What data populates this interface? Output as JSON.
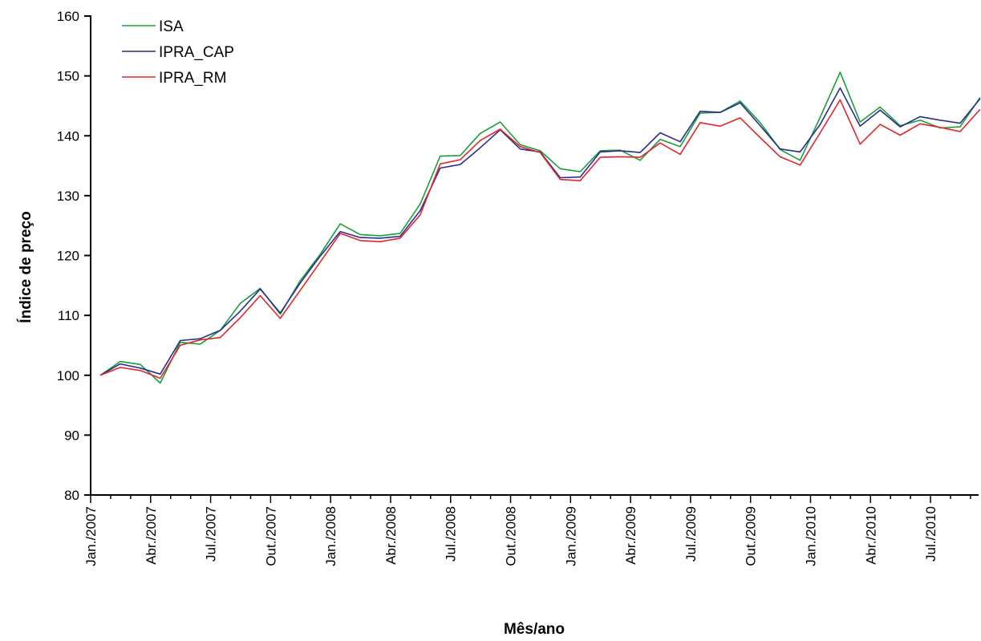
{
  "chart_data": {
    "type": "line",
    "xlabel": "Mês/ano",
    "ylabel": "Índice de preço",
    "ylim": [
      80,
      160
    ],
    "yticks": [
      80,
      90,
      100,
      110,
      120,
      130,
      140,
      150,
      160
    ],
    "x_tick_labels": [
      "Jan./2007",
      "Abr./2007",
      "Jul./2007",
      "Out./2007",
      "Jan./2008",
      "Abr./2008",
      "Jul./2008",
      "Out./2008",
      "Jan./2009",
      "Abr./2009",
      "Jul./2009",
      "Out./2009",
      "Jan./2010",
      "Abr./2010",
      "Jul./2010"
    ],
    "x": [
      "Jan./2007",
      "Fev./2007",
      "Mar./2007",
      "Abr./2007",
      "Mai./2007",
      "Jun./2007",
      "Jul./2007",
      "Ago./2007",
      "Set./2007",
      "Out./2007",
      "Nov./2007",
      "Dez./2007",
      "Jan./2008",
      "Fev./2008",
      "Mar./2008",
      "Abr./2008",
      "Mai./2008",
      "Jun./2008",
      "Jul./2008",
      "Ago./2008",
      "Set./2008",
      "Out./2008",
      "Nov./2008",
      "Dez./2008",
      "Jan./2009",
      "Fev./2009",
      "Mar./2009",
      "Abr./2009",
      "Mai./2009",
      "Jun./2009",
      "Jul./2009",
      "Ago./2009",
      "Set./2009",
      "Out./2009",
      "Nov./2009",
      "Dez./2009",
      "Jan./2010",
      "Fev./2010",
      "Mar./2010",
      "Abr./2010",
      "Mai./2010",
      "Jun./2010",
      "Jul./2010",
      "Ago./2010",
      "Set./2010"
    ],
    "grid": false,
    "legend_position": "top-left",
    "series": [
      {
        "name": "ISA",
        "color": "#1a9e3a",
        "values": [
          100,
          102.3,
          101.8,
          98.7,
          105.5,
          105.2,
          107.5,
          112,
          114.5,
          110.2,
          115.8,
          120.2,
          125.3,
          123.5,
          123.3,
          123.7,
          128.6,
          136.6,
          136.7,
          140.4,
          142.3,
          138.5,
          137.5,
          134.5,
          134,
          137.5,
          137.6,
          135.9,
          139.4,
          138.2,
          143.8,
          143.9,
          145.8,
          142.2,
          137.7,
          135.9,
          143.1,
          150.6,
          142.3,
          144.8,
          141.7,
          142.6,
          141.3,
          141.5,
          146.4
        ]
      },
      {
        "name": "IPRA_CAP",
        "color": "#2b2e8c",
        "values": [
          100,
          101.9,
          101.2,
          100.2,
          105.8,
          106.1,
          107.5,
          110.7,
          114.4,
          110.4,
          115.4,
          119.9,
          124,
          123,
          122.9,
          123.2,
          127.5,
          134.6,
          135.2,
          138,
          141,
          137.8,
          137.3,
          133,
          133.1,
          137.3,
          137.5,
          137.2,
          140.5,
          139,
          144.1,
          143.9,
          145.5,
          141.7,
          137.8,
          137.3,
          141.9,
          148,
          141.6,
          144.3,
          141.5,
          143.2,
          142.6,
          142.1,
          146.2
        ]
      },
      {
        "name": "IPRA_RM",
        "color": "#e3242b",
        "values": [
          100,
          101.3,
          100.8,
          99.5,
          105,
          105.9,
          106.3,
          109.6,
          113.3,
          109.5,
          114.2,
          118.9,
          123.7,
          122.5,
          122.3,
          122.9,
          126.8,
          135.3,
          136,
          139.2,
          141.1,
          138.2,
          137.2,
          132.7,
          132.5,
          136.4,
          136.5,
          136.4,
          138.8,
          136.9,
          142.2,
          141.6,
          143,
          139.7,
          136.5,
          135.1,
          140.5,
          146,
          138.6,
          141.9,
          140.1,
          142,
          141.4,
          140.7,
          144.4
        ]
      }
    ]
  }
}
